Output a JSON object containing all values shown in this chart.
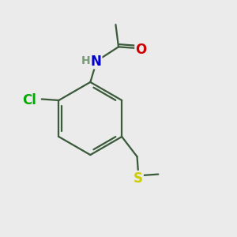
{
  "bg_color": "#ebebeb",
  "bond_color": "#3a5a3a",
  "bond_width": 1.6,
  "atom_colors": {
    "N": "#0000cc",
    "O": "#cc0000",
    "Cl": "#00aa00",
    "S": "#cccc00",
    "C": "#3a5a3a",
    "H": "#7a9a7a"
  },
  "font_size": 11,
  "figsize": [
    3.0,
    3.0
  ],
  "dpi": 100
}
